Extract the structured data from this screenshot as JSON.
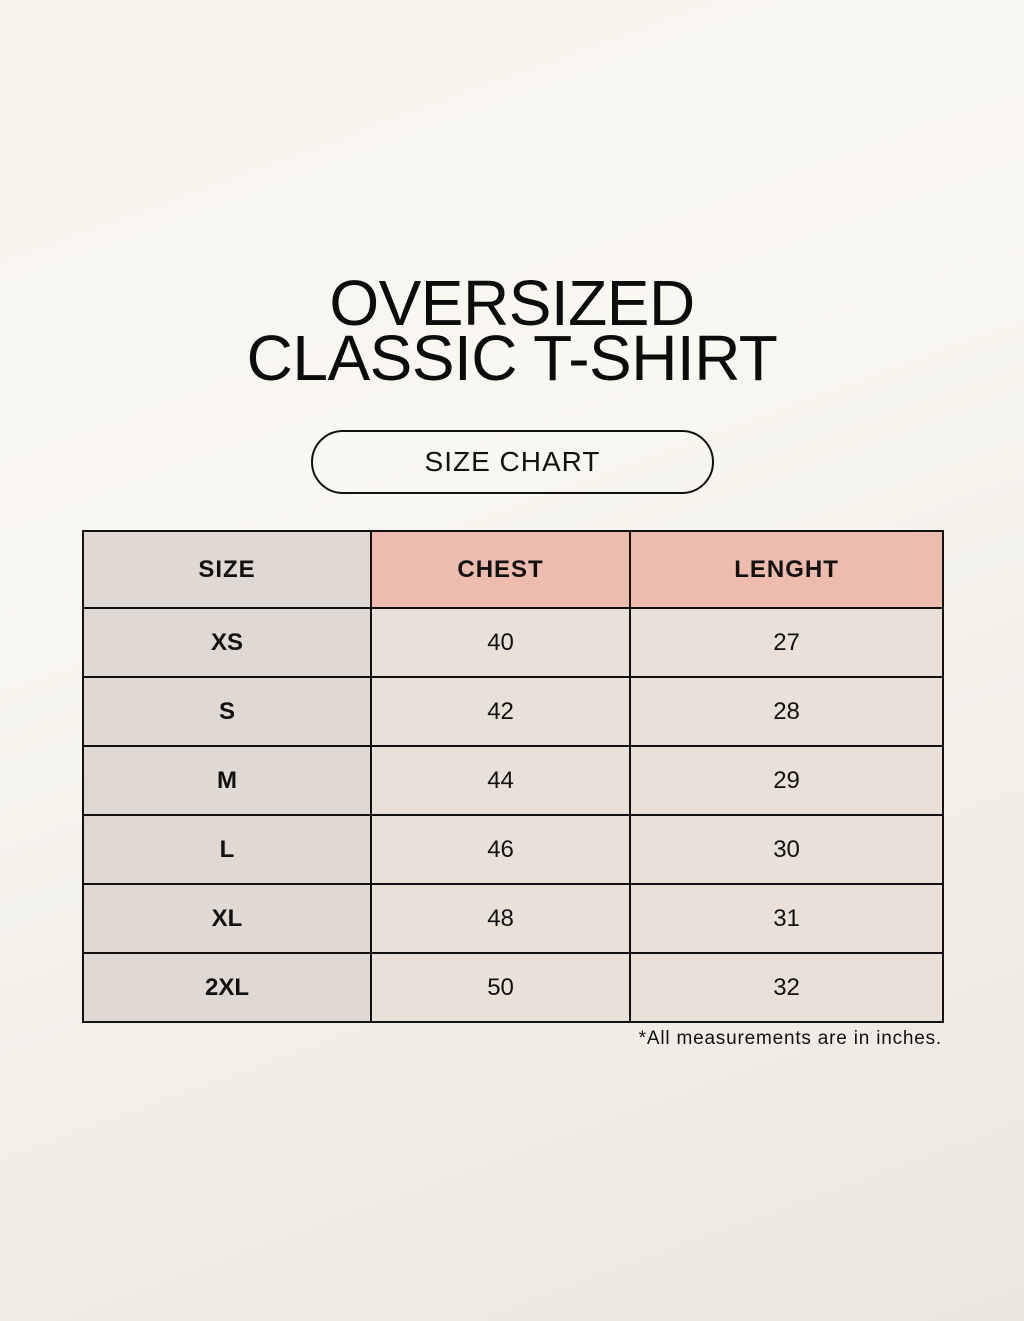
{
  "title": {
    "line1": "OVERSIZED",
    "line2": "CLASSIC T-SHIRT"
  },
  "badge": "SIZE CHART",
  "colors": {
    "size_column": "#e0d8d2",
    "header_accent": "#edbcae",
    "cells": "#e9e1d7"
  },
  "table": {
    "headers": [
      "SIZE",
      "CHEST",
      "LENGHT"
    ],
    "rows": [
      [
        "XS",
        "40",
        "27"
      ],
      [
        "S",
        "42",
        "28"
      ],
      [
        "M",
        "44",
        "29"
      ],
      [
        "L",
        "46",
        "30"
      ],
      [
        "XL",
        "48",
        "31"
      ],
      [
        "2XL",
        "50",
        "32"
      ]
    ]
  },
  "note": "*All measurements are in inches."
}
